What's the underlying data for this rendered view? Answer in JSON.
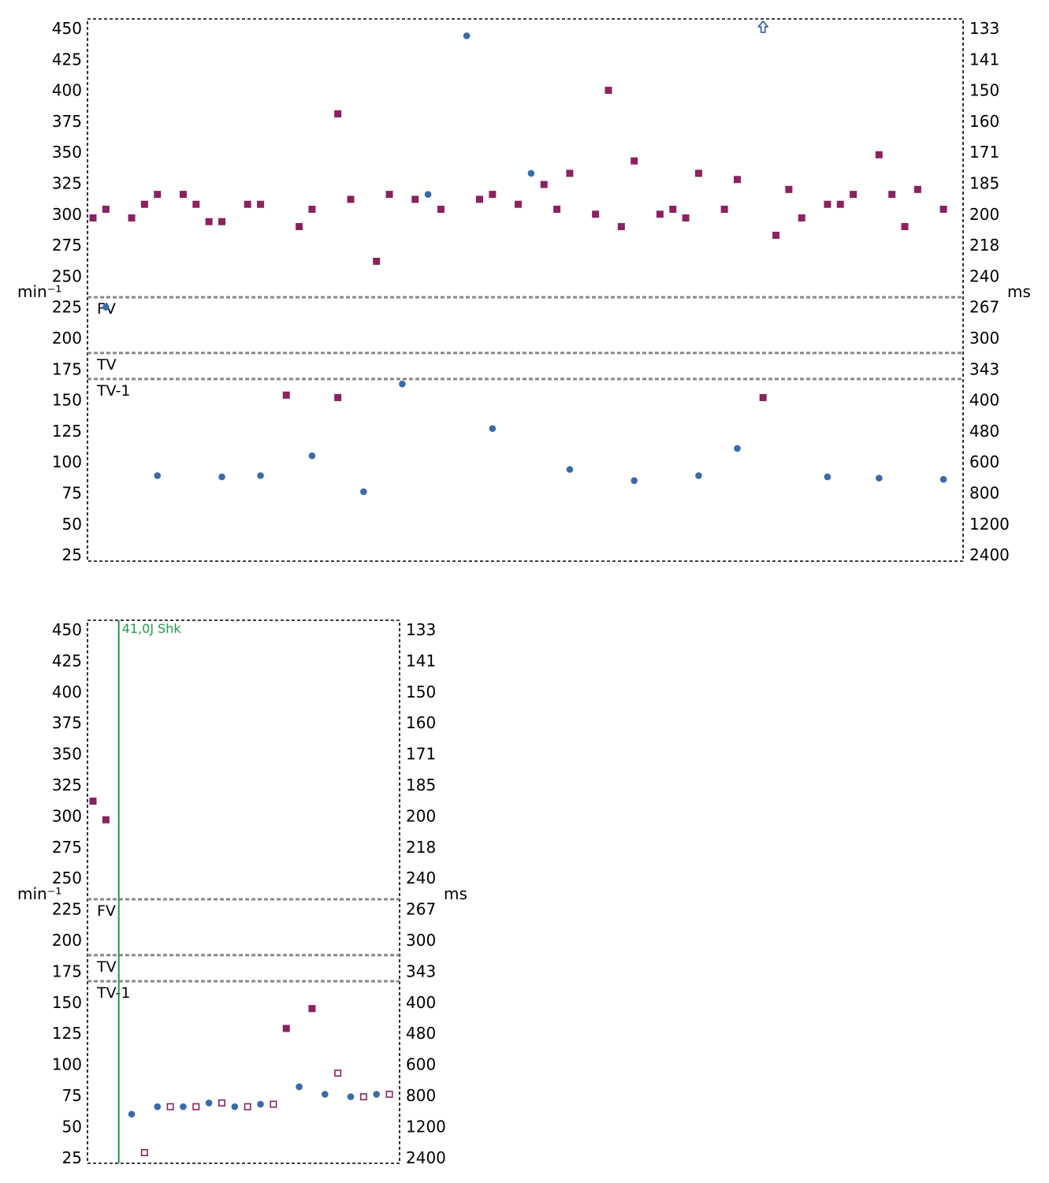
{
  "chart_data": [
    {
      "type": "scatter",
      "y_left_label": "min⁻¹",
      "y_right_label": "ms",
      "y_ticks_left": [
        "450",
        "425",
        "400",
        "375",
        "350",
        "325",
        "300",
        "275",
        "250",
        "225",
        "200",
        "175",
        "150",
        "125",
        "100",
        "75",
        "50",
        "25"
      ],
      "y_ticks_right": [
        "133",
        "141",
        "150",
        "160",
        "171",
        "185",
        "200",
        "218",
        "240",
        "267",
        "300",
        "343",
        "400",
        "480",
        "600",
        "800",
        "1200",
        "2400"
      ],
      "zones": [
        {
          "label": "FV",
          "rate": 233
        },
        {
          "label": "TV",
          "rate": 188
        },
        {
          "label": "TV-1",
          "rate": 167
        }
      ],
      "colors": {
        "ventricular": "#3b6aa8",
        "atrial": "#8b2260",
        "zone_line": "#888888",
        "frame": "#000000"
      },
      "series": [
        {
          "marker": "circle-filled",
          "color": "#3b6aa8",
          "points": [
            [
              1,
              225
            ],
            [
              5,
              89
            ],
            [
              10,
              88
            ],
            [
              13,
              89
            ],
            [
              17,
              105
            ],
            [
              21,
              76
            ],
            [
              24,
              163
            ],
            [
              26,
              316
            ],
            [
              29,
              444
            ],
            [
              31,
              127
            ],
            [
              34,
              333
            ],
            [
              37,
              94
            ],
            [
              42,
              85
            ],
            [
              47,
              89
            ],
            [
              50,
              111
            ],
            [
              57,
              88
            ],
            [
              61,
              87
            ],
            [
              66,
              86
            ]
          ]
        },
        {
          "marker": "square-filled",
          "color": "#8b2260",
          "points": [
            [
              0,
              297
            ],
            [
              1,
              304
            ],
            [
              3,
              297
            ],
            [
              4,
              308
            ],
            [
              5,
              316
            ],
            [
              7,
              316
            ],
            [
              8,
              308
            ],
            [
              9,
              294
            ],
            [
              10,
              294
            ],
            [
              12,
              308
            ],
            [
              13,
              308
            ],
            [
              15,
              154
            ],
            [
              16,
              290
            ],
            [
              17,
              304
            ],
            [
              19,
              381
            ],
            [
              19,
              152
            ],
            [
              20,
              312
            ],
            [
              22,
              262
            ],
            [
              23,
              316
            ],
            [
              25,
              312
            ],
            [
              27,
              304
            ],
            [
              30,
              312
            ],
            [
              31,
              316
            ],
            [
              33,
              308
            ],
            [
              35,
              324
            ],
            [
              36,
              304
            ],
            [
              37,
              333
            ],
            [
              39,
              300
            ],
            [
              40,
              400
            ],
            [
              41,
              290
            ],
            [
              42,
              343
            ],
            [
              44,
              300
            ],
            [
              45,
              304
            ],
            [
              46,
              297
            ],
            [
              47,
              333
            ],
            [
              49,
              304
            ],
            [
              50,
              328
            ],
            [
              52,
              152
            ],
            [
              53,
              283
            ],
            [
              54,
              320
            ],
            [
              55,
              297
            ],
            [
              57,
              308
            ],
            [
              58,
              308
            ],
            [
              59,
              316
            ],
            [
              61,
              348
            ],
            [
              62,
              316
            ],
            [
              63,
              290
            ],
            [
              64,
              320
            ],
            [
              66,
              304
            ]
          ]
        }
      ],
      "markers": [
        {
          "type": "up-arrow-icon",
          "index": 52,
          "color": "#3b6aa8"
        }
      ]
    },
    {
      "type": "scatter",
      "y_left_label": "min⁻¹",
      "y_right_label": "ms",
      "y_ticks_left": [
        "450",
        "425",
        "400",
        "375",
        "350",
        "325",
        "300",
        "275",
        "250",
        "225",
        "200",
        "175",
        "150",
        "125",
        "100",
        "75",
        "50",
        "25"
      ],
      "y_ticks_right": [
        "133",
        "141",
        "150",
        "160",
        "171",
        "185",
        "200",
        "218",
        "240",
        "267",
        "300",
        "343",
        "400",
        "480",
        "600",
        "800",
        "1200",
        "2400"
      ],
      "zones": [
        {
          "label": "FV",
          "rate": 233
        },
        {
          "label": "TV",
          "rate": 188
        },
        {
          "label": "TV-1",
          "rate": 167
        }
      ],
      "annotation": {
        "text": "41,0J Shk",
        "index": 2,
        "color": "#1f9a4a"
      },
      "series": [
        {
          "marker": "circle-filled",
          "color": "#3b6aa8",
          "points": [
            [
              3,
              60
            ],
            [
              5,
              66
            ],
            [
              7,
              66
            ],
            [
              9,
              69
            ],
            [
              11,
              66
            ],
            [
              13,
              68
            ],
            [
              16,
              82
            ],
            [
              18,
              76
            ],
            [
              20,
              74
            ],
            [
              22,
              76
            ]
          ]
        },
        {
          "marker": "square-filled",
          "color": "#8b2260",
          "points": [
            [
              0,
              312
            ],
            [
              1,
              297
            ],
            [
              15,
              129
            ],
            [
              17,
              145
            ]
          ]
        },
        {
          "marker": "square-open",
          "color": "#8b2260",
          "points": [
            [
              4,
              29
            ],
            [
              6,
              66
            ],
            [
              8,
              66
            ],
            [
              10,
              69
            ],
            [
              12,
              66
            ],
            [
              14,
              68
            ],
            [
              19,
              93
            ],
            [
              21,
              74
            ],
            [
              23,
              76
            ]
          ]
        }
      ]
    }
  ]
}
